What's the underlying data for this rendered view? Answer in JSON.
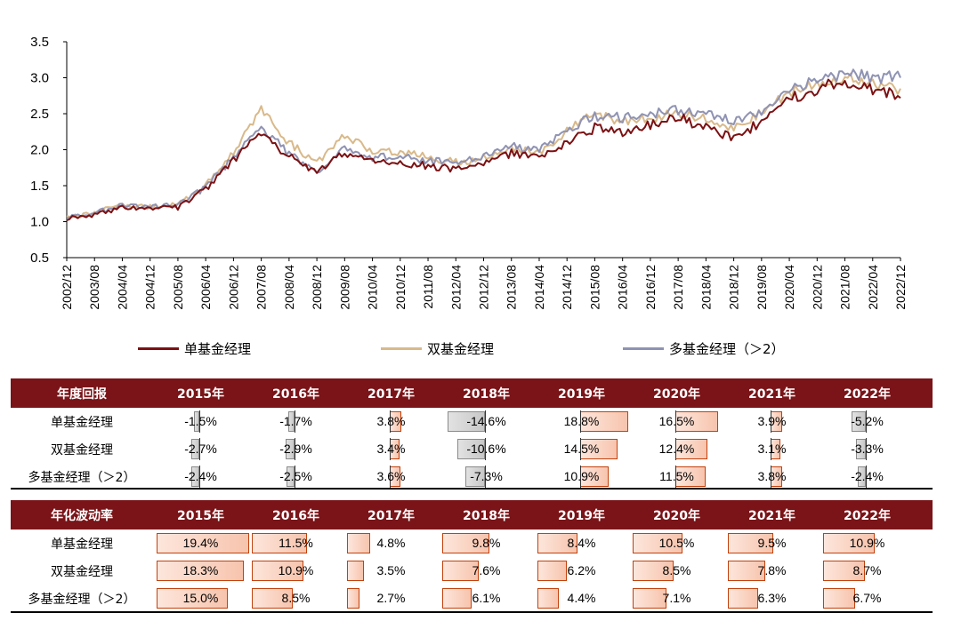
{
  "chart_data": {
    "type": "line",
    "title": "",
    "xlabel": "",
    "ylabel": "",
    "ylim": [
      0.5,
      3.5
    ],
    "yticks": [
      "0.5",
      "1.0",
      "1.5",
      "2.0",
      "2.5",
      "3.0",
      "3.5"
    ],
    "x_tick_labels": [
      "2002/12",
      "2003/08",
      "2004/04",
      "2004/12",
      "2005/08",
      "2006/04",
      "2006/12",
      "2007/08",
      "2008/04",
      "2008/12",
      "2009/08",
      "2010/04",
      "2010/12",
      "2011/08",
      "2012/04",
      "2012/12",
      "2013/08",
      "2014/04",
      "2014/12",
      "2015/08",
      "2016/04",
      "2016/12",
      "2017/08",
      "2018/04",
      "2018/12",
      "2019/08",
      "2020/04",
      "2020/12",
      "2021/08",
      "2022/04",
      "2022/12"
    ],
    "series": [
      {
        "name": "单基金经理",
        "color": "#7b1113",
        "values": [
          1.05,
          1.1,
          1.2,
          1.18,
          1.2,
          1.45,
          1.85,
          2.25,
          1.9,
          1.7,
          1.95,
          1.85,
          1.8,
          1.78,
          1.72,
          1.8,
          1.95,
          1.88,
          2.1,
          2.3,
          2.25,
          2.35,
          2.45,
          2.3,
          2.15,
          2.4,
          2.7,
          2.85,
          2.95,
          2.85,
          2.72
        ]
      },
      {
        "name": "双基金经理",
        "color": "#d9b98a",
        "values": [
          1.05,
          1.12,
          1.25,
          1.2,
          1.25,
          1.5,
          1.95,
          2.55,
          2.1,
          1.8,
          2.2,
          2.0,
          1.95,
          1.9,
          1.82,
          1.88,
          2.0,
          1.95,
          2.25,
          2.5,
          2.4,
          2.45,
          2.5,
          2.45,
          2.3,
          2.5,
          2.8,
          2.9,
          3.0,
          2.9,
          2.85
        ]
      },
      {
        "name": "多基金经理（＞2）",
        "color": "#8f93b3",
        "values": [
          1.05,
          1.12,
          1.22,
          1.2,
          1.23,
          1.48,
          1.9,
          2.3,
          1.95,
          1.65,
          2.05,
          1.9,
          1.9,
          1.85,
          1.8,
          1.9,
          2.05,
          1.98,
          2.3,
          2.45,
          2.45,
          2.5,
          2.55,
          2.5,
          2.4,
          2.55,
          2.85,
          2.95,
          3.05,
          3.0,
          3.0
        ]
      }
    ],
    "legend_position": "bottom"
  },
  "returns_table": {
    "header": "年度回报",
    "years": [
      "2015年",
      "2016年",
      "2017年",
      "2018年",
      "2019年",
      "2020年",
      "2021年",
      "2022年"
    ],
    "rows": [
      {
        "label": "单基金经理",
        "values": [
          -1.5,
          -1.7,
          3.8,
          -14.6,
          18.8,
          16.5,
          3.9,
          -5.2
        ],
        "texts": [
          "-1.5%",
          "-1.7%",
          "3.8%",
          "-14.6%",
          "18.8%",
          "16.5%",
          "3.9%",
          "-5.2%"
        ]
      },
      {
        "label": "双基金经理",
        "values": [
          -2.7,
          -2.9,
          3.4,
          -10.6,
          14.5,
          12.4,
          3.1,
          -3.3
        ],
        "texts": [
          "-2.7%",
          "-2.9%",
          "3.4%",
          "-10.6%",
          "14.5%",
          "12.4%",
          "3.1%",
          "-3.3%"
        ]
      },
      {
        "label": "多基金经理（＞2）",
        "values": [
          -2.4,
          -2.5,
          3.6,
          -7.3,
          10.9,
          11.5,
          3.8,
          -2.4
        ],
        "texts": [
          "-2.4%",
          "-2.5%",
          "3.6%",
          "-7.3%",
          "10.9%",
          "11.5%",
          "3.8%",
          "-2.4%"
        ]
      }
    ]
  },
  "volatility_table": {
    "header": "年化波动率",
    "years": [
      "2015年",
      "2016年",
      "2017年",
      "2018年",
      "2019年",
      "2020年",
      "2021年",
      "2022年"
    ],
    "rows": [
      {
        "label": "单基金经理",
        "values": [
          19.4,
          11.5,
          4.8,
          9.8,
          8.4,
          10.5,
          9.5,
          10.9
        ],
        "texts": [
          "19.4%",
          "11.5%",
          "4.8%",
          "9.8%",
          "8.4%",
          "10.5%",
          "9.5%",
          "10.9%"
        ]
      },
      {
        "label": "双基金经理",
        "values": [
          18.3,
          10.9,
          3.5,
          7.6,
          6.2,
          8.5,
          7.8,
          8.7
        ],
        "texts": [
          "18.3%",
          "10.9%",
          "3.5%",
          "7.6%",
          "6.2%",
          "8.5%",
          "7.8%",
          "8.7%"
        ]
      },
      {
        "label": "多基金经理（＞2）",
        "values": [
          15.0,
          8.5,
          2.7,
          6.1,
          4.4,
          7.1,
          6.3,
          6.7
        ],
        "texts": [
          "15.0%",
          "8.5%",
          "2.7%",
          "6.1%",
          "4.4%",
          "7.1%",
          "6.3%",
          "6.7%"
        ]
      }
    ]
  }
}
